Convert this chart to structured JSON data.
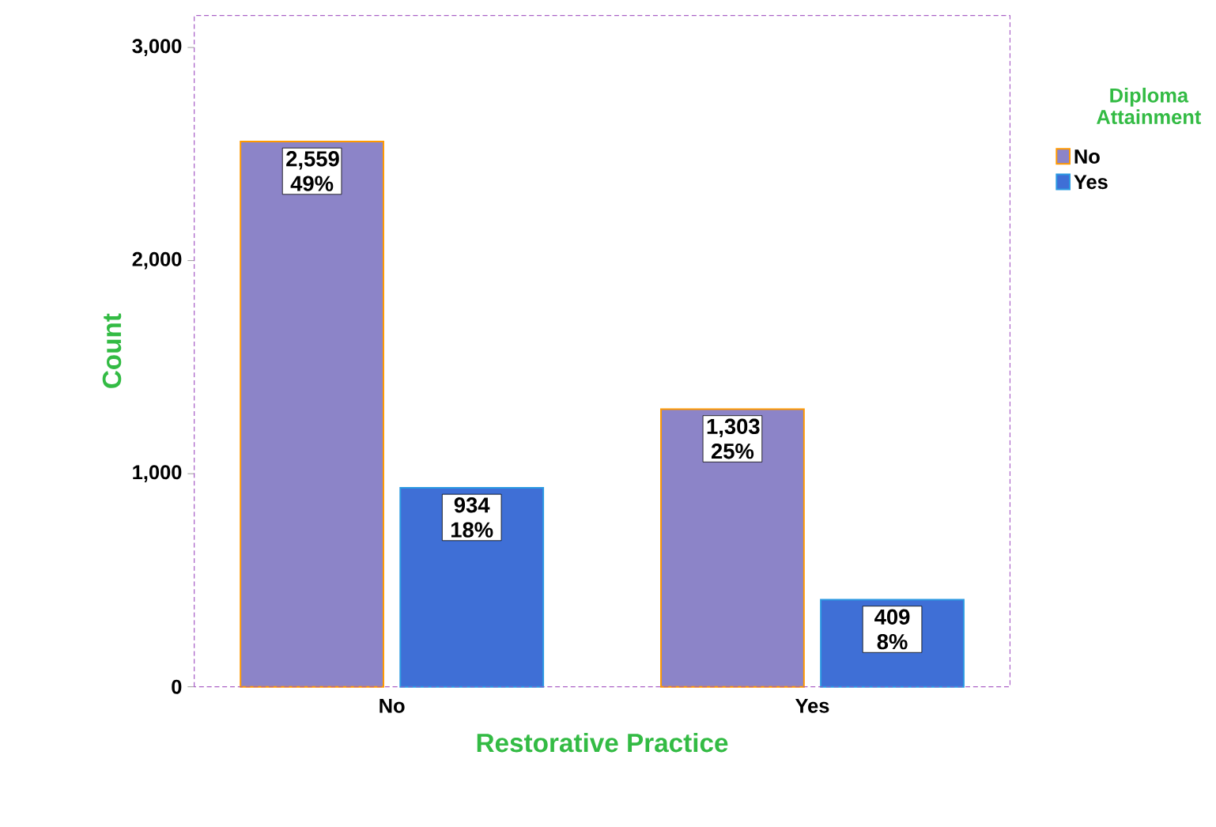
{
  "chart_data": {
    "type": "bar",
    "xlabel": "Restorative Practice",
    "ylabel": "Count",
    "legend_title": "Diploma Attainment",
    "categories": [
      "No",
      "Yes"
    ],
    "series": [
      {
        "name": "No",
        "color": "#8c84c8",
        "values": [
          2559,
          1303
        ],
        "value_labels": [
          "2,559 49%",
          "1,303 25%"
        ]
      },
      {
        "name": "Yes",
        "color": "#3f6fd6",
        "values": [
          934,
          409
        ],
        "value_labels": [
          "934 18%",
          "409 8%"
        ]
      }
    ],
    "ylim": [
      0,
      3150
    ],
    "yticks": [
      0,
      {
        "value": 1000,
        "label": "1,000"
      },
      {
        "value": 2000,
        "label": "2,000"
      },
      {
        "value": 3000,
        "label": "3,000"
      }
    ],
    "grid": false,
    "legend": "top right"
  }
}
